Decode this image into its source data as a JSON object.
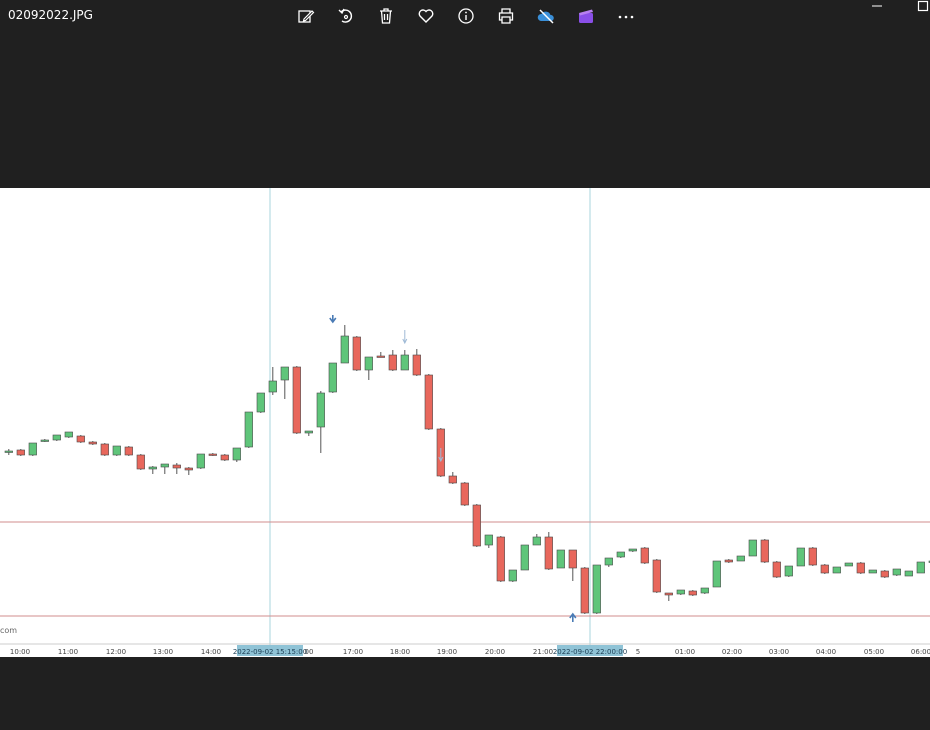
{
  "window": {
    "filename": "02092022.JPG"
  },
  "toolbar": {
    "icons": [
      "edit-image-icon",
      "rotate-icon",
      "delete-icon",
      "favorite-icon",
      "info-icon",
      "print-icon",
      "onedrive-icon",
      "clipchamp-icon",
      "more-icon"
    ]
  },
  "chart": {
    "watermark": "com",
    "x_ticks": [
      "10:00",
      "11:00",
      "12:00",
      "13:00",
      "14:00",
      "2022-09-02 15:15:00",
      "00",
      "17:00",
      "18:00",
      "19:00",
      "20:00",
      "21:00",
      "2022-09-02 22:00:00",
      "5",
      "01:00",
      "02:00",
      "03:00",
      "04:00",
      "05:00",
      "06:00"
    ],
    "colors": {
      "up": "#5fc57a",
      "down": "#e8675c",
      "level_line": "#d08e8e",
      "crosshair": "#a9d4dc",
      "highlight_label_bg": "#8fc3d6",
      "signal_arrow": "#4a7bb5"
    }
  },
  "chart_data": {
    "type": "candlestick",
    "title": "",
    "xlabel": "",
    "ylabel": "",
    "horizontal_levels": [
      522,
      616
    ],
    "vertical_markers": [
      "2022-09-02 15:15:00",
      "2022-09-02 22:00:00"
    ],
    "signals": [
      {
        "type": "down-arrow",
        "bar": 27
      },
      {
        "type": "down-arrow-faint",
        "bar": 33
      },
      {
        "type": "down-arrow-faint",
        "bar": 36
      },
      {
        "type": "up-arrow",
        "bar": 47
      }
    ],
    "note": "price values are in screen units; the screenshot prints no y-axis",
    "candles": [
      [
        452,
        451,
        455,
        449
      ],
      [
        450,
        455,
        456,
        449
      ],
      [
        455,
        443,
        446,
        456
      ],
      [
        441,
        440,
        442,
        439
      ],
      [
        440,
        435,
        436,
        441
      ],
      [
        437,
        432,
        434,
        438
      ],
      [
        436,
        442,
        443,
        435
      ],
      [
        442,
        444,
        445,
        441
      ],
      [
        444,
        455,
        456,
        443
      ],
      [
        455,
        446,
        447,
        456
      ],
      [
        447,
        455,
        456,
        446
      ],
      [
        455,
        469,
        470,
        454
      ],
      [
        469,
        467,
        474,
        466
      ],
      [
        467,
        464,
        465,
        474
      ],
      [
        465,
        468,
        474,
        463
      ],
      [
        468,
        470,
        475,
        467
      ],
      [
        468,
        454,
        455,
        469
      ],
      [
        454,
        455,
        456,
        453
      ],
      [
        455,
        460,
        461,
        454
      ],
      [
        460,
        448,
        449,
        462
      ],
      [
        447,
        412,
        413,
        448
      ],
      [
        412,
        393,
        394,
        413
      ],
      [
        392,
        381,
        395,
        367
      ],
      [
        380,
        367,
        368,
        399
      ],
      [
        367,
        433,
        434,
        366
      ],
      [
        433,
        431,
        432,
        436
      ],
      [
        427,
        393,
        453,
        391
      ],
      [
        392,
        363,
        364,
        393
      ],
      [
        363,
        336,
        337,
        325
      ],
      [
        337,
        370,
        371,
        336
      ],
      [
        370,
        357,
        358,
        380
      ],
      [
        356,
        356,
        357,
        352
      ],
      [
        355,
        370,
        371,
        350
      ],
      [
        370,
        355,
        356,
        350
      ],
      [
        355,
        375,
        376,
        349
      ],
      [
        375,
        429,
        430,
        374
      ],
      [
        429,
        476,
        477,
        428
      ],
      [
        476,
        483,
        484,
        472
      ],
      [
        483,
        505,
        506,
        482
      ],
      [
        505,
        546,
        547,
        504
      ],
      [
        545,
        535,
        536,
        548
      ],
      [
        537,
        581,
        582,
        536
      ],
      [
        581,
        570,
        571,
        582
      ],
      [
        570,
        545,
        546,
        569
      ],
      [
        545,
        537,
        538,
        534
      ],
      [
        537,
        569,
        570,
        532
      ],
      [
        568,
        550,
        551,
        567
      ],
      [
        550,
        568,
        569,
        581
      ],
      [
        568,
        613,
        614,
        567
      ],
      [
        613,
        565,
        566,
        614
      ],
      [
        565,
        558,
        559,
        567
      ],
      [
        557,
        552,
        553,
        558
      ],
      [
        551,
        549,
        550,
        552
      ],
      [
        548,
        563,
        564,
        547
      ],
      [
        560,
        592,
        593,
        559
      ],
      [
        593,
        595,
        601,
        594
      ],
      [
        594,
        590,
        591,
        595
      ],
      [
        591,
        595,
        596,
        590
      ],
      [
        593,
        588,
        589,
        594
      ],
      [
        587,
        561,
        562,
        586
      ],
      [
        560,
        562,
        563,
        559
      ],
      [
        561,
        556,
        557,
        560
      ],
      [
        556,
        540,
        541,
        555
      ],
      [
        540,
        562,
        563,
        539
      ],
      [
        562,
        577,
        578,
        561
      ],
      [
        576,
        566,
        567,
        577
      ],
      [
        566,
        548,
        549,
        565
      ],
      [
        548,
        565,
        566,
        547
      ],
      [
        565,
        573,
        574,
        564
      ],
      [
        573,
        567,
        568,
        572
      ],
      [
        566,
        563,
        564,
        563
      ],
      [
        563,
        573,
        574,
        562
      ],
      [
        573,
        570,
        571,
        572
      ],
      [
        571,
        577,
        578,
        570
      ],
      [
        575,
        569,
        570,
        576
      ],
      [
        576,
        571,
        572,
        573
      ],
      [
        573,
        562,
        563,
        572
      ],
      [
        562,
        561,
        562,
        559
      ],
      [
        560,
        559,
        560,
        561
      ]
    ]
  }
}
